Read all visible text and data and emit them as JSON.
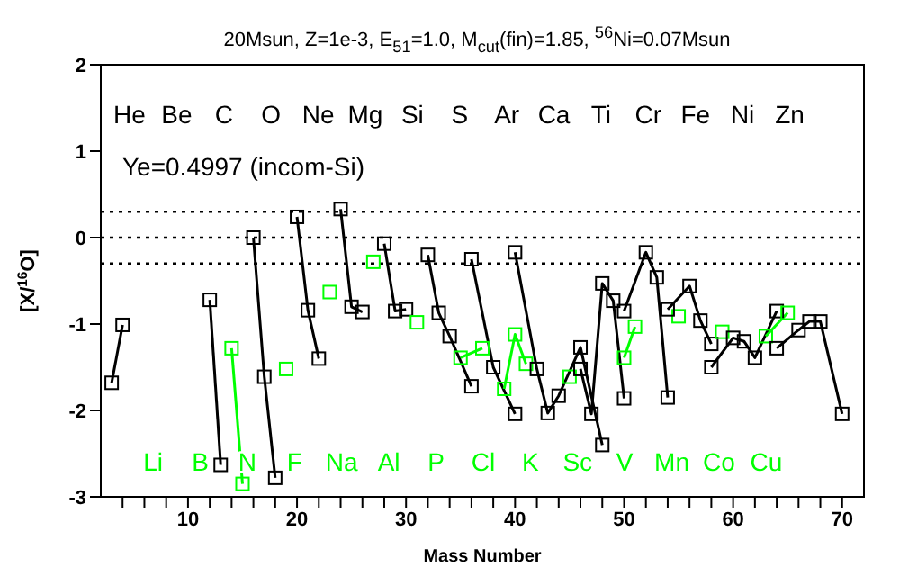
{
  "chart_data": {
    "type": "line",
    "title": "20Msun, Z=1e-3, E$_{51}$=1.0, M$_{cut}$(fin)=1.85, $^{56}$Ni=0.07Msun",
    "xlabel": "Mass Number",
    "ylabel": "[X/$^{16}$O]",
    "annotations": [
      "Ye=0.4997 (incom-Si)",
      "He",
      "Li",
      "Be",
      "B",
      "C",
      "N",
      "O",
      "F",
      "Ne",
      "Na",
      "Mg",
      "Al",
      "Si",
      "P",
      "S",
      "Cl",
      "Ar",
      "K",
      "Ca",
      "Sc",
      "Ti",
      "V",
      "Cr",
      "Mn",
      "Fe",
      "Co",
      "Ni",
      "Cu",
      "Zn"
    ],
    "xlim": [
      2,
      72
    ],
    "xticks": [
      {
        "value": 4,
        "label": null
      },
      {
        "value": 6,
        "label": null
      },
      {
        "value": 8,
        "label": null
      },
      10,
      {
        "value": 12,
        "label": null
      },
      {
        "value": 14,
        "label": null
      },
      {
        "value": 16,
        "label": null
      },
      {
        "value": 18,
        "label": null
      },
      20,
      {
        "value": 22,
        "label": null
      },
      {
        "value": 24,
        "label": null
      },
      {
        "value": 26,
        "label": null
      },
      {
        "value": 28,
        "label": null
      },
      30,
      {
        "value": 32,
        "label": null
      },
      {
        "value": 34,
        "label": null
      },
      {
        "value": 36,
        "label": null
      },
      {
        "value": 38,
        "label": null
      },
      40,
      {
        "value": 42,
        "label": null
      },
      {
        "value": 44,
        "label": null
      },
      {
        "value": 46,
        "label": null
      },
      {
        "value": 48,
        "label": null
      },
      50,
      {
        "value": 52,
        "label": null
      },
      {
        "value": 54,
        "label": null
      },
      {
        "value": 56,
        "label": null
      },
      {
        "value": 58,
        "label": null
      },
      60,
      {
        "value": 62,
        "label": null
      },
      {
        "value": 64,
        "label": null
      },
      {
        "value": 66,
        "label": null
      },
      {
        "value": 68,
        "label": null
      },
      70
    ],
    "ylim": [
      -3,
      2
    ],
    "yticks": [
      -3,
      -2,
      -1,
      0,
      1,
      2
    ],
    "marker": "square",
    "line_style": "solid",
    "ref_lines": [
      {
        "axis": "y",
        "value": 0.3,
        "color": "#000000",
        "line_style": "dotted"
      },
      {
        "axis": "y",
        "value": 0,
        "color": "#000000",
        "line_style": "dotted"
      },
      {
        "axis": "y",
        "value": -0.3,
        "color": "#000000",
        "line_style": "dotted"
      }
    ],
    "series": [
      {
        "color": "#000000",
        "x": [
          3,
          4
        ],
        "values": [
          -1.68,
          -1.01
        ]
      },
      {
        "color": "#000000",
        "x": [
          12,
          13
        ],
        "values": [
          -0.72,
          -2.63
        ]
      },
      {
        "color": "#00ff00",
        "x": [
          14,
          15
        ],
        "values": [
          -1.28,
          -2.85
        ]
      },
      {
        "color": "#000000",
        "x": [
          16,
          17,
          18
        ],
        "values": [
          0.0,
          -1.61,
          -2.78
        ]
      },
      {
        "color": "#00ff00",
        "x": [
          19
        ],
        "values": [
          -1.52
        ]
      },
      {
        "color": "#000000",
        "x": [
          20,
          21,
          22
        ],
        "values": [
          0.24,
          -0.84,
          -1.4
        ]
      },
      {
        "color": "#00ff00",
        "x": [
          23
        ],
        "values": [
          -0.63
        ]
      },
      {
        "color": "#000000",
        "x": [
          24,
          25,
          26
        ],
        "values": [
          0.33,
          -0.8,
          -0.86
        ]
      },
      {
        "color": "#00ff00",
        "x": [
          27
        ],
        "values": [
          -0.28
        ]
      },
      {
        "color": "#000000",
        "x": [
          28,
          29,
          30
        ],
        "values": [
          -0.07,
          -0.85,
          -0.83
        ]
      },
      {
        "color": "#00ff00",
        "x": [
          31
        ],
        "values": [
          -0.98
        ]
      },
      {
        "color": "#000000",
        "x": [
          32,
          33,
          34,
          36
        ],
        "values": [
          -0.2,
          -0.87,
          -1.14,
          -1.72
        ]
      },
      {
        "color": "#00ff00",
        "x": [
          35,
          37
        ],
        "values": [
          -1.39,
          -1.28
        ]
      },
      {
        "color": "#000000",
        "x": [
          36,
          38,
          40
        ],
        "values": [
          -0.25,
          -1.5,
          -2.04
        ]
      },
      {
        "color": "#00ff00",
        "x": [
          39,
          40,
          41
        ],
        "values": [
          -1.75,
          -1.12,
          -1.46
        ]
      },
      {
        "color": "#000000",
        "x": [
          40,
          42,
          43,
          44,
          46,
          48
        ],
        "values": [
          -0.17,
          -1.52,
          -2.03,
          -1.83,
          -1.27,
          -2.4
        ]
      },
      {
        "color": "#00ff00",
        "x": [
          45
        ],
        "values": [
          -1.61
        ]
      },
      {
        "color": "#000000",
        "x": [
          46,
          47,
          48,
          49,
          50
        ],
        "values": [
          -1.52,
          -2.04,
          -0.53,
          -0.73,
          -1.86
        ]
      },
      {
        "color": "#00ff00",
        "x": [
          50,
          51
        ],
        "values": [
          -1.39,
          -1.03
        ]
      },
      {
        "color": "#000000",
        "x": [
          50,
          52,
          53,
          54
        ],
        "values": [
          -0.85,
          -0.17,
          -0.46,
          -1.85
        ]
      },
      {
        "color": "#00ff00",
        "x": [
          55
        ],
        "values": [
          -0.91
        ]
      },
      {
        "color": "#000000",
        "x": [
          54,
          56,
          57,
          58
        ],
        "values": [
          -0.83,
          -0.56,
          -0.96,
          -1.23
        ]
      },
      {
        "color": "#00ff00",
        "x": [
          59
        ],
        "values": [
          -1.09
        ]
      },
      {
        "color": "#000000",
        "x": [
          58,
          60,
          61,
          62,
          64
        ],
        "values": [
          -1.5,
          -1.16,
          -1.2,
          -1.39,
          -0.85
        ]
      },
      {
        "color": "#00ff00",
        "x": [
          63,
          65
        ],
        "values": [
          -1.14,
          -0.87
        ]
      },
      {
        "color": "#000000",
        "x": [
          64,
          66,
          67,
          68,
          70
        ],
        "values": [
          -1.28,
          -1.07,
          -0.97,
          -0.97,
          -2.04
        ]
      }
    ]
  }
}
